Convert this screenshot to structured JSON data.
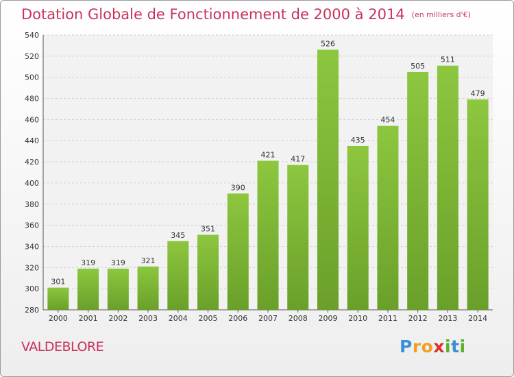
{
  "title": "Dotation Globale de Fonctionnement de 2000 à 2014",
  "unit": "(en milliers d'€)",
  "place": "VALDEBLORE",
  "logo": "Proxiti",
  "colors": {
    "bar": "#8dc63f",
    "bar_dark": "#6aa02a",
    "title": "#c8325a"
  },
  "chart_data": {
    "type": "bar",
    "title": "Dotation Globale de Fonctionnement de 2000 à 2014",
    "categories": [
      "2000",
      "2001",
      "2002",
      "2003",
      "2004",
      "2005",
      "2006",
      "2007",
      "2008",
      "2009",
      "2010",
      "2011",
      "2012",
      "2013",
      "2014"
    ],
    "values": [
      301,
      319,
      319,
      321,
      345,
      351,
      390,
      421,
      417,
      526,
      435,
      454,
      505,
      511,
      479
    ],
    "ylim": [
      280,
      540
    ],
    "yticks": [
      280,
      300,
      320,
      340,
      360,
      380,
      400,
      420,
      440,
      460,
      480,
      500,
      520,
      540
    ],
    "grid": true
  }
}
